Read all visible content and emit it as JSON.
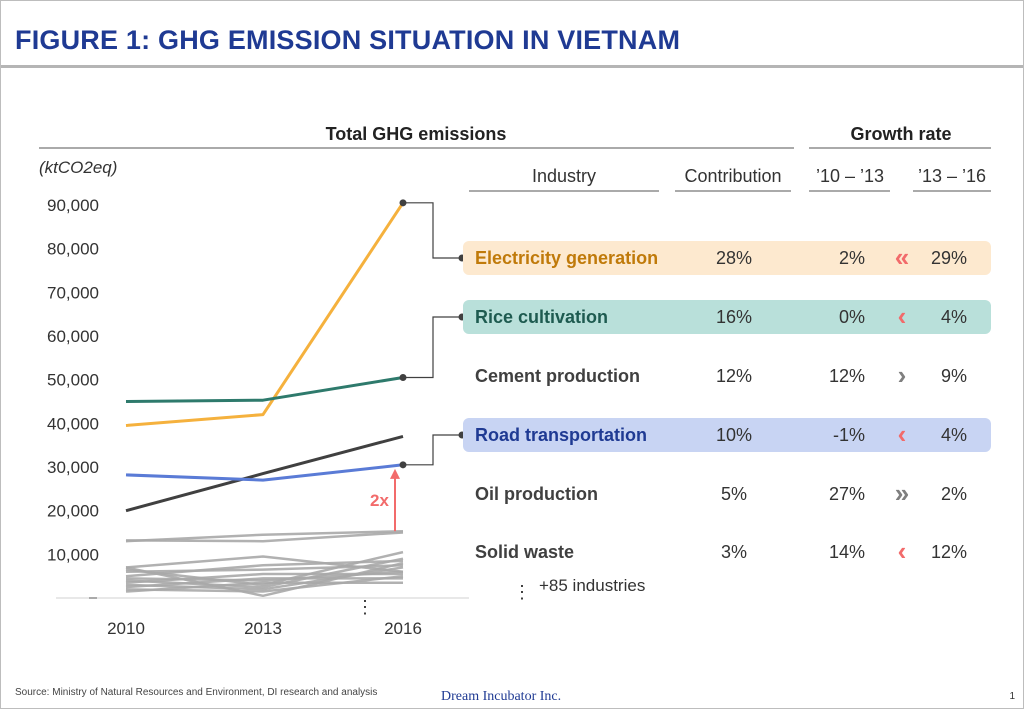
{
  "title": "FIGURE 1: GHG EMISSION SITUATION IN VIETNAM",
  "headers": {
    "left": "Total GHG emissions",
    "right": "Growth rate",
    "industry": "Industry",
    "contribution": "Contribution",
    "period1": "’10 – ’13",
    "period2": "’13 – ’16"
  },
  "chart_data": {
    "type": "line",
    "ylabel": "(ktCO2eq)",
    "x": [
      "2010",
      "2013",
      "2016"
    ],
    "ylim": [
      0,
      95000
    ],
    "yticks": [
      "10,000",
      "20,000",
      "30,000",
      "40,000",
      "50,000",
      "60,000",
      "70,000",
      "80,000",
      "90,000"
    ],
    "ytick_values": [
      10000,
      20000,
      30000,
      40000,
      50000,
      60000,
      70000,
      80000,
      90000
    ],
    "series": [
      {
        "name": "Electricity generation",
        "color": "#f5b13d",
        "values": [
          39500,
          42000,
          90500
        ]
      },
      {
        "name": "Rice cultivation",
        "color": "#2e7a6c",
        "values": [
          45000,
          45300,
          50500
        ]
      },
      {
        "name": "Cement production",
        "color": "#404040",
        "values": [
          20000,
          28500,
          37000
        ]
      },
      {
        "name": "Road transportation",
        "color": "#5a7bd6",
        "values": [
          28200,
          27000,
          30500
        ]
      },
      {
        "name": "",
        "color": "#a8a8a8",
        "values": [
          13000,
          14500,
          15300
        ]
      },
      {
        "name": "",
        "color": "#a8a8a8",
        "values": [
          13200,
          13000,
          15000
        ]
      },
      {
        "name": "",
        "color": "#a8a8a8",
        "values": [
          7000,
          9500,
          6000
        ]
      },
      {
        "name": "",
        "color": "#a8a8a8",
        "values": [
          6500,
          3000,
          10500
        ]
      },
      {
        "name": "",
        "color": "#a8a8a8",
        "values": [
          6000,
          6500,
          7500
        ]
      },
      {
        "name": "",
        "color": "#a8a8a8",
        "values": [
          5000,
          7500,
          8500
        ]
      },
      {
        "name": "",
        "color": "#a8a8a8",
        "values": [
          4500,
          4000,
          6000
        ]
      },
      {
        "name": "",
        "color": "#a8a8a8",
        "values": [
          3500,
          5500,
          5500
        ]
      },
      {
        "name": "",
        "color": "#a8a8a8",
        "values": [
          3000,
          2000,
          7000
        ]
      },
      {
        "name": "",
        "color": "#a8a8a8",
        "values": [
          2500,
          4500,
          4500
        ]
      },
      {
        "name": "",
        "color": "#a8a8a8",
        "values": [
          2000,
          1500,
          5000
        ]
      },
      {
        "name": "",
        "color": "#a8a8a8",
        "values": [
          7000,
          500,
          8000
        ]
      },
      {
        "name": "",
        "color": "#a8a8a8",
        "values": [
          1500,
          3500,
          3500
        ]
      },
      {
        "name": "",
        "color": "#a8a8a8",
        "values": [
          4000,
          2500,
          9000
        ]
      }
    ],
    "annotation": {
      "label": "2x",
      "x": "2016",
      "from": 15300,
      "to": 30500,
      "color": "#f26b6b"
    }
  },
  "rows": [
    {
      "industry": "Electricity generation",
      "contribution": "28%",
      "g1": "2%",
      "g2": "29%",
      "arrow": "«",
      "arrow_color": "#f26b6b",
      "text_color": "#c07a0a",
      "bg": "#fde9cf",
      "y": 90500
    },
    {
      "industry": "Rice cultivation",
      "contribution": "16%",
      "g1": "0%",
      "g2": "4%",
      "arrow": "‹",
      "arrow_color": "#f26b6b",
      "text_color": "#1e5b50",
      "bg": "#b9e0da",
      "y": 50500
    },
    {
      "industry": "Cement production",
      "contribution": "12%",
      "g1": "12%",
      "g2": "9%",
      "arrow": "›",
      "arrow_color": "#7f7f7f",
      "text_color": "#404040",
      "bg": "",
      "y": null
    },
    {
      "industry": "Road transportation",
      "contribution": "10%",
      "g1": "-1%",
      "g2": "4%",
      "arrow": "‹",
      "arrow_color": "#f26b6b",
      "text_color": "#1f3a93",
      "bg": "#c8d4f3",
      "y": 30500
    },
    {
      "industry": "Oil production",
      "contribution": "5%",
      "g1": "27%",
      "g2": "2%",
      "arrow": "»",
      "arrow_color": "#7f7f7f",
      "text_color": "#404040",
      "bg": "",
      "y": null
    },
    {
      "industry": "Solid waste",
      "contribution": "3%",
      "g1": "14%",
      "g2": "12%",
      "arrow": "‹",
      "arrow_color": "#f26b6b",
      "text_color": "#404040",
      "bg": "",
      "y": null
    }
  ],
  "more_industries": "+85 industries",
  "footer": {
    "source": "Source:  Ministry of Natural Resources and Environment, DI research and analysis",
    "brand": "Dream Incubator Inc.",
    "page": "1"
  }
}
